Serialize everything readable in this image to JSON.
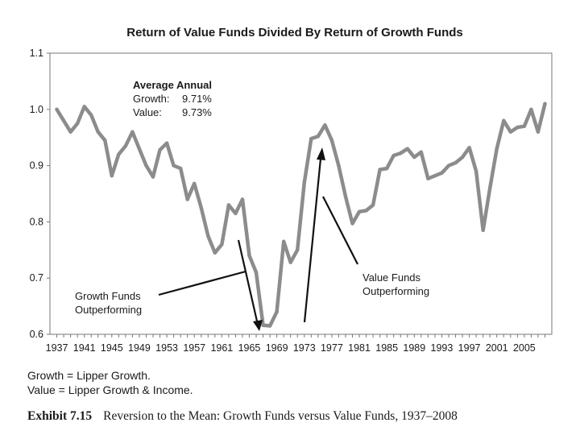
{
  "chart_data": {
    "type": "line",
    "title": "Return of Value Funds Divided By Return of Growth Funds",
    "xlabel": "",
    "ylabel": "",
    "xlim": [
      1936,
      2009
    ],
    "ylim": [
      0.6,
      1.1
    ],
    "yticks": [
      "0.6",
      "0.7",
      "0.8",
      "0.9",
      "1.0",
      "1.1"
    ],
    "xticks": [
      "1937",
      "1941",
      "1945",
      "1949",
      "1953",
      "1957",
      "1961",
      "1965",
      "1969",
      "1973",
      "1977",
      "1981",
      "1985",
      "1989",
      "1993",
      "1997",
      "2001",
      "2005"
    ],
    "series": [
      {
        "name": "Value / Growth",
        "x": [
          1937,
          1938,
          1939,
          1940,
          1941,
          1942,
          1943,
          1944,
          1945,
          1946,
          1947,
          1948,
          1949,
          1950,
          1951,
          1952,
          1953,
          1954,
          1955,
          1956,
          1957,
          1958,
          1959,
          1960,
          1961,
          1962,
          1963,
          1964,
          1965,
          1966,
          1967,
          1968,
          1969,
          1970,
          1971,
          1972,
          1973,
          1974,
          1975,
          1976,
          1977,
          1978,
          1979,
          1980,
          1981,
          1982,
          1983,
          1984,
          1985,
          1986,
          1987,
          1988,
          1989,
          1990,
          1991,
          1992,
          1993,
          1994,
          1995,
          1996,
          1997,
          1998,
          1999,
          2000,
          2001,
          2002,
          2003,
          2004,
          2005,
          2006,
          2007,
          2008
        ],
        "values": [
          1.0,
          0.98,
          0.96,
          0.975,
          1.005,
          0.99,
          0.96,
          0.945,
          0.882,
          0.92,
          0.935,
          0.96,
          0.93,
          0.9,
          0.88,
          0.928,
          0.94,
          0.9,
          0.895,
          0.84,
          0.868,
          0.825,
          0.775,
          0.745,
          0.76,
          0.83,
          0.815,
          0.84,
          0.74,
          0.71,
          0.616,
          0.615,
          0.64,
          0.765,
          0.728,
          0.75,
          0.87,
          0.948,
          0.952,
          0.972,
          0.945,
          0.9,
          0.845,
          0.797,
          0.818,
          0.82,
          0.83,
          0.893,
          0.895,
          0.918,
          0.922,
          0.93,
          0.915,
          0.924,
          0.877,
          0.882,
          0.887,
          0.9,
          0.905,
          0.915,
          0.932,
          0.89,
          0.785,
          0.86,
          0.93,
          0.98,
          0.96,
          0.968,
          0.97,
          1.0,
          0.96,
          1.01
        ]
      }
    ],
    "grid": false,
    "legend": "none",
    "annotations": {
      "average_title": "Average Annual",
      "growth_label": "Growth:",
      "growth_value": "9.71%",
      "value_label": "Value:",
      "value_value": "9.73%",
      "growth_outperf_line1": "Growth Funds",
      "growth_outperf_line2": "Outperforming",
      "value_outperf_line1": "Value Funds",
      "value_outperf_line2": "Outperforming"
    }
  },
  "notes": {
    "growth_def": "Growth = Lipper Growth.",
    "value_def": "Value = Lipper Growth & Income."
  },
  "caption": {
    "label": "Exhibit 7.15",
    "text": "Reversion to the Mean: Growth Funds versus Value Funds, 1937–2008"
  },
  "colors": {
    "line": "#8c8c8c",
    "axis": "#777777",
    "text": "#1a1a1a",
    "arrow": "#111111"
  }
}
